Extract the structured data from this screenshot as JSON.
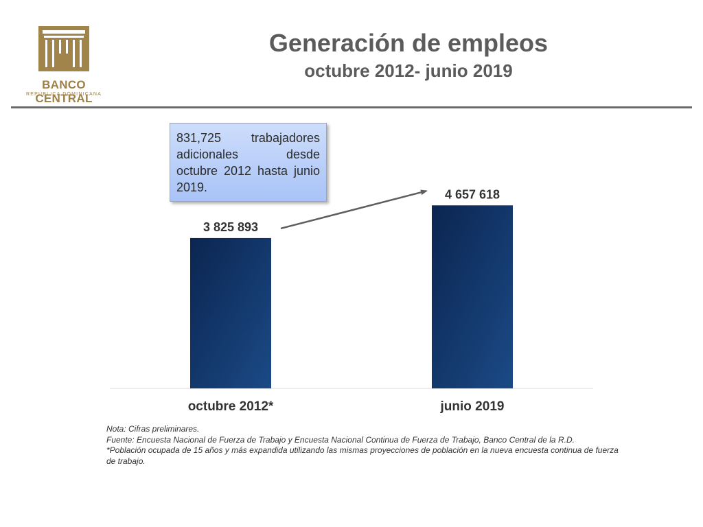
{
  "logo": {
    "name": "BANCO CENTRAL",
    "sub": "REPÚBLICA DOMINICANA",
    "icon": "columns-building-icon",
    "color": "#9c8046"
  },
  "header": {
    "title": "Generación de empleos",
    "subtitle": "octubre 2012- junio 2019"
  },
  "callout": {
    "text": "831,725 trabajadores adicionales desde octubre 2012 hasta junio 2019."
  },
  "chart_data": {
    "type": "bar",
    "title": "",
    "xlabel": "",
    "ylabel": "",
    "categories": [
      "octubre 2012*",
      "junio 2019"
    ],
    "values": [
      3825893,
      4657618
    ],
    "value_labels": [
      "3 825 893",
      "4 657 618"
    ],
    "ylim": [
      0,
      4750000
    ],
    "grid": false,
    "legend": "none",
    "bar_color_dark": "#0b2550",
    "bar_color_light": "#1b4a86",
    "annotation": "arrow from octubre 2012* to junio 2019"
  },
  "notes": [
    "Nota: Cifras preliminares.",
    "Fuente: Encuesta Nacional de Fuerza de Trabajo y Encuesta Nacional Continua de Fuerza de Trabajo, Banco Central de la R.D.",
    "*Población ocupada de 15 años y más expandida utilizando las mismas proyecciones de población en la nueva encuesta continua de fuerza de trabajo."
  ]
}
